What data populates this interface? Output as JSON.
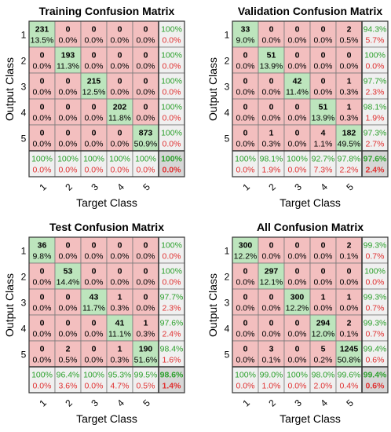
{
  "colors": {
    "correct": "#bde5bd",
    "incorrect": "#f3bfbf",
    "summary": "#f0f0f0",
    "total": "#d6d6d6",
    "green_text": "#2ca02c",
    "red_text": "#e03030",
    "grid": "#7a7a7a"
  },
  "chart_data": [
    {
      "type": "heatmap",
      "title": "Training Confusion Matrix",
      "xlabel": "Target Class",
      "ylabel": "Output Class",
      "classes": [
        "1",
        "2",
        "3",
        "4",
        "5"
      ],
      "cells": [
        [
          {
            "count": "231",
            "pct": "13.5%"
          },
          {
            "count": "0",
            "pct": "0.0%"
          },
          {
            "count": "0",
            "pct": "0.0%"
          },
          {
            "count": "0",
            "pct": "0.0%"
          },
          {
            "count": "0",
            "pct": "0.0%"
          }
        ],
        [
          {
            "count": "0",
            "pct": "0.0%"
          },
          {
            "count": "193",
            "pct": "11.3%"
          },
          {
            "count": "0",
            "pct": "0.0%"
          },
          {
            "count": "0",
            "pct": "0.0%"
          },
          {
            "count": "0",
            "pct": "0.0%"
          }
        ],
        [
          {
            "count": "0",
            "pct": "0.0%"
          },
          {
            "count": "0",
            "pct": "0.0%"
          },
          {
            "count": "215",
            "pct": "12.5%"
          },
          {
            "count": "0",
            "pct": "0.0%"
          },
          {
            "count": "0",
            "pct": "0.0%"
          }
        ],
        [
          {
            "count": "0",
            "pct": "0.0%"
          },
          {
            "count": "0",
            "pct": "0.0%"
          },
          {
            "count": "0",
            "pct": "0.0%"
          },
          {
            "count": "202",
            "pct": "11.8%"
          },
          {
            "count": "0",
            "pct": "0.0%"
          }
        ],
        [
          {
            "count": "0",
            "pct": "0.0%"
          },
          {
            "count": "0",
            "pct": "0.0%"
          },
          {
            "count": "0",
            "pct": "0.0%"
          },
          {
            "count": "0",
            "pct": "0.0%"
          },
          {
            "count": "873",
            "pct": "50.9%"
          }
        ]
      ],
      "row_summary": [
        {
          "correct": "100%",
          "error": "0.0%"
        },
        {
          "correct": "100%",
          "error": "0.0%"
        },
        {
          "correct": "100%",
          "error": "0.0%"
        },
        {
          "correct": "100%",
          "error": "0.0%"
        },
        {
          "correct": "100%",
          "error": "0.0%"
        }
      ],
      "col_summary": [
        {
          "correct": "100%",
          "error": "0.0%"
        },
        {
          "correct": "100%",
          "error": "0.0%"
        },
        {
          "correct": "100%",
          "error": "0.0%"
        },
        {
          "correct": "100%",
          "error": "0.0%"
        },
        {
          "correct": "100%",
          "error": "0.0%"
        }
      ],
      "total": {
        "correct": "100%",
        "error": "0.0%"
      }
    },
    {
      "type": "heatmap",
      "title": "Validation Confusion Matrix",
      "xlabel": "Target Class",
      "ylabel": "Output Class",
      "classes": [
        "1",
        "2",
        "3",
        "4",
        "5"
      ],
      "cells": [
        [
          {
            "count": "33",
            "pct": "9.0%"
          },
          {
            "count": "0",
            "pct": "0.0%"
          },
          {
            "count": "0",
            "pct": "0.0%"
          },
          {
            "count": "0",
            "pct": "0.0%"
          },
          {
            "count": "2",
            "pct": "0.5%"
          }
        ],
        [
          {
            "count": "0",
            "pct": "0.0%"
          },
          {
            "count": "51",
            "pct": "13.9%"
          },
          {
            "count": "0",
            "pct": "0.0%"
          },
          {
            "count": "0",
            "pct": "0.0%"
          },
          {
            "count": "0",
            "pct": "0.0%"
          }
        ],
        [
          {
            "count": "0",
            "pct": "0.0%"
          },
          {
            "count": "0",
            "pct": "0.0%"
          },
          {
            "count": "42",
            "pct": "11.4%"
          },
          {
            "count": "0",
            "pct": "0.0%"
          },
          {
            "count": "1",
            "pct": "0.3%"
          }
        ],
        [
          {
            "count": "0",
            "pct": "0.0%"
          },
          {
            "count": "0",
            "pct": "0.0%"
          },
          {
            "count": "0",
            "pct": "0.0%"
          },
          {
            "count": "51",
            "pct": "13.9%"
          },
          {
            "count": "1",
            "pct": "0.3%"
          }
        ],
        [
          {
            "count": "0",
            "pct": "0.0%"
          },
          {
            "count": "1",
            "pct": "0.3%"
          },
          {
            "count": "0",
            "pct": "0.0%"
          },
          {
            "count": "4",
            "pct": "1.1%"
          },
          {
            "count": "182",
            "pct": "49.5%"
          }
        ]
      ],
      "row_summary": [
        {
          "correct": "94.3%",
          "error": "5.7%"
        },
        {
          "correct": "100%",
          "error": "0.0%"
        },
        {
          "correct": "97.7%",
          "error": "2.3%"
        },
        {
          "correct": "98.1%",
          "error": "1.9%"
        },
        {
          "correct": "97.3%",
          "error": "2.7%"
        }
      ],
      "col_summary": [
        {
          "correct": "100%",
          "error": "0.0%"
        },
        {
          "correct": "98.1%",
          "error": "1.9%"
        },
        {
          "correct": "100%",
          "error": "0.0%"
        },
        {
          "correct": "92.7%",
          "error": "7.3%"
        },
        {
          "correct": "97.8%",
          "error": "2.2%"
        }
      ],
      "total": {
        "correct": "97.6%",
        "error": "2.4%"
      }
    },
    {
      "type": "heatmap",
      "title": "Test Confusion Matrix",
      "xlabel": "Target Class",
      "ylabel": "Output Class",
      "classes": [
        "1",
        "2",
        "3",
        "4",
        "5"
      ],
      "cells": [
        [
          {
            "count": "36",
            "pct": "9.8%"
          },
          {
            "count": "0",
            "pct": "0.0%"
          },
          {
            "count": "0",
            "pct": "0.0%"
          },
          {
            "count": "0",
            "pct": "0.0%"
          },
          {
            "count": "0",
            "pct": "0.0%"
          }
        ],
        [
          {
            "count": "0",
            "pct": "0.0%"
          },
          {
            "count": "53",
            "pct": "14.4%"
          },
          {
            "count": "0",
            "pct": "0.0%"
          },
          {
            "count": "0",
            "pct": "0.0%"
          },
          {
            "count": "0",
            "pct": "0.0%"
          }
        ],
        [
          {
            "count": "0",
            "pct": "0.0%"
          },
          {
            "count": "0",
            "pct": "0.0%"
          },
          {
            "count": "43",
            "pct": "11.7%"
          },
          {
            "count": "1",
            "pct": "0.3%"
          },
          {
            "count": "0",
            "pct": "0.0%"
          }
        ],
        [
          {
            "count": "0",
            "pct": "0.0%"
          },
          {
            "count": "0",
            "pct": "0.0%"
          },
          {
            "count": "0",
            "pct": "0.0%"
          },
          {
            "count": "41",
            "pct": "11.1%"
          },
          {
            "count": "1",
            "pct": "0.3%"
          }
        ],
        [
          {
            "count": "0",
            "pct": "0.0%"
          },
          {
            "count": "2",
            "pct": "0.5%"
          },
          {
            "count": "0",
            "pct": "0.0%"
          },
          {
            "count": "1",
            "pct": "0.3%"
          },
          {
            "count": "190",
            "pct": "51.6%"
          }
        ]
      ],
      "row_summary": [
        {
          "correct": "100%",
          "error": "0.0%"
        },
        {
          "correct": "100%",
          "error": "0.0%"
        },
        {
          "correct": "97.7%",
          "error": "2.3%"
        },
        {
          "correct": "97.6%",
          "error": "2.4%"
        },
        {
          "correct": "98.4%",
          "error": "1.6%"
        }
      ],
      "col_summary": [
        {
          "correct": "100%",
          "error": "0.0%"
        },
        {
          "correct": "96.4%",
          "error": "3.6%"
        },
        {
          "correct": "100%",
          "error": "0.0%"
        },
        {
          "correct": "95.3%",
          "error": "4.7%"
        },
        {
          "correct": "99.5%",
          "error": "0.5%"
        }
      ],
      "total": {
        "correct": "98.6%",
        "error": "1.4%"
      }
    },
    {
      "type": "heatmap",
      "title": "All Confusion Matrix",
      "xlabel": "Target Class",
      "ylabel": "Output Class",
      "classes": [
        "1",
        "2",
        "3",
        "4",
        "5"
      ],
      "cells": [
        [
          {
            "count": "300",
            "pct": "12.2%"
          },
          {
            "count": "0",
            "pct": "0.0%"
          },
          {
            "count": "0",
            "pct": "0.0%"
          },
          {
            "count": "0",
            "pct": "0.0%"
          },
          {
            "count": "2",
            "pct": "0.1%"
          }
        ],
        [
          {
            "count": "0",
            "pct": "0.0%"
          },
          {
            "count": "297",
            "pct": "12.1%"
          },
          {
            "count": "0",
            "pct": "0.0%"
          },
          {
            "count": "0",
            "pct": "0.0%"
          },
          {
            "count": "0",
            "pct": "0.0%"
          }
        ],
        [
          {
            "count": "0",
            "pct": "0.0%"
          },
          {
            "count": "0",
            "pct": "0.0%"
          },
          {
            "count": "300",
            "pct": "12.2%"
          },
          {
            "count": "1",
            "pct": "0.0%"
          },
          {
            "count": "1",
            "pct": "0.0%"
          }
        ],
        [
          {
            "count": "0",
            "pct": "0.0%"
          },
          {
            "count": "0",
            "pct": "0.0%"
          },
          {
            "count": "0",
            "pct": "0.0%"
          },
          {
            "count": "294",
            "pct": "12.0%"
          },
          {
            "count": "2",
            "pct": "0.1%"
          }
        ],
        [
          {
            "count": "0",
            "pct": "0.0%"
          },
          {
            "count": "3",
            "pct": "0.1%"
          },
          {
            "count": "0",
            "pct": "0.0%"
          },
          {
            "count": "5",
            "pct": "0.2%"
          },
          {
            "count": "1245",
            "pct": "50.8%"
          }
        ]
      ],
      "row_summary": [
        {
          "correct": "99.3%",
          "error": "0.7%"
        },
        {
          "correct": "100%",
          "error": "0.0%"
        },
        {
          "correct": "99.3%",
          "error": "0.7%"
        },
        {
          "correct": "99.3%",
          "error": "0.7%"
        },
        {
          "correct": "99.4%",
          "error": "0.6%"
        }
      ],
      "col_summary": [
        {
          "correct": "100%",
          "error": "0.0%"
        },
        {
          "correct": "99.0%",
          "error": "1.0%"
        },
        {
          "correct": "100%",
          "error": "0.0%"
        },
        {
          "correct": "98.0%",
          "error": "2.0%"
        },
        {
          "correct": "99.6%",
          "error": "0.4%"
        }
      ],
      "total": {
        "correct": "99.4%",
        "error": "0.6%"
      }
    }
  ]
}
